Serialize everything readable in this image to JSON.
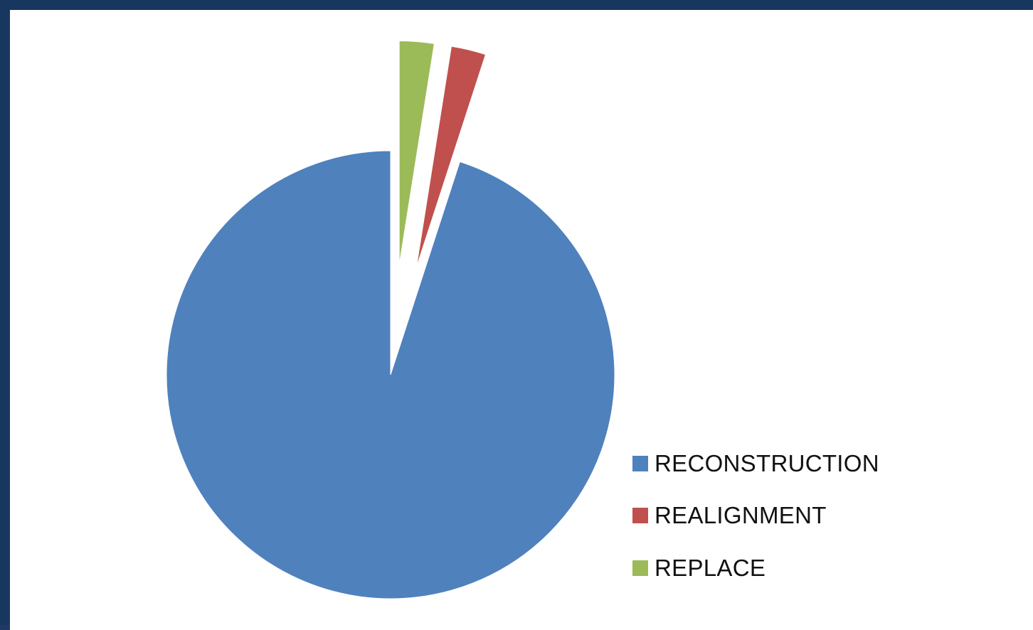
{
  "chart_data": {
    "type": "pie",
    "title": "",
    "slices": [
      {
        "name": "RECONSTRUCTION",
        "value": 95,
        "color": "#4f81bd",
        "exploded": false
      },
      {
        "name": "REALIGNMENT",
        "value": 2.5,
        "color": "#c0504d",
        "exploded": true
      },
      {
        "name": "REPLACE",
        "value": 2.5,
        "color": "#9bbb59",
        "exploded": true
      }
    ],
    "legend_position": "right-bottom",
    "start_angle_deg": 0,
    "direction": "counterclockwise"
  }
}
